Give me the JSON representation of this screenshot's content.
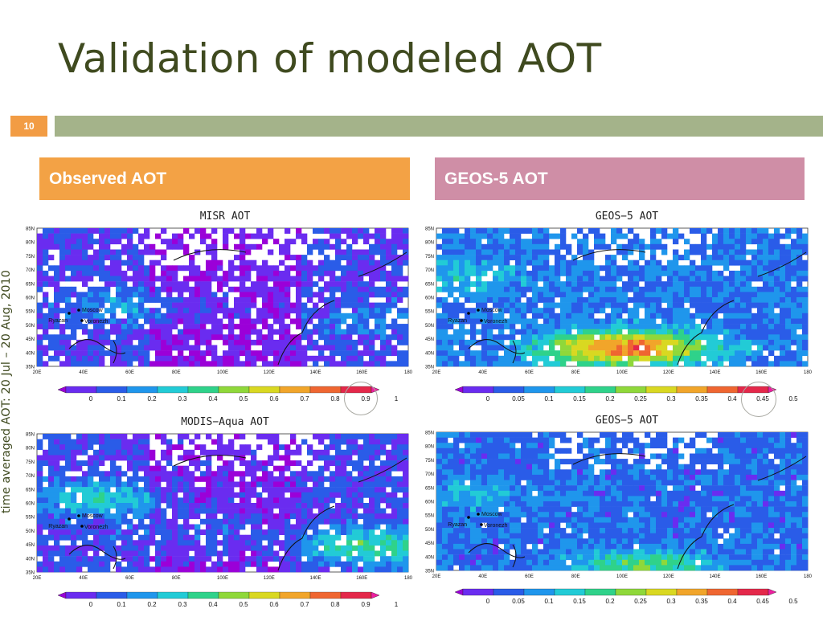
{
  "slide": {
    "title": "Validation of modeled AOT",
    "number": "10",
    "side_label": "time averaged AOT: 20 Jul – 20 Aug, 2010",
    "observed_header": "Observed AOT",
    "geos_header": "GEOS-5 AOT"
  },
  "map_axes": {
    "lat_labels": [
      "85N",
      "80N",
      "75N",
      "70N",
      "65N",
      "60N",
      "55N",
      "50N",
      "45N",
      "40N",
      "35N"
    ],
    "lon_labels": [
      "20E",
      "40E",
      "60E",
      "80E",
      "100E",
      "120E",
      "140E",
      "160E",
      "180"
    ],
    "cities": [
      "Moscow",
      "Ryazan",
      "Voronezh"
    ]
  },
  "panels": [
    {
      "id": "misr",
      "title": "MISR AOT",
      "colorbar": [
        "0",
        "0.1",
        "0.2",
        "0.3",
        "0.4",
        "0.5",
        "0.6",
        "0.7",
        "0.8",
        "0.9",
        "1"
      ]
    },
    {
      "id": "geos-top",
      "title": "GEOS−5 AOT",
      "colorbar": [
        "0",
        "0.05",
        "0.1",
        "0.15",
        "0.2",
        "0.25",
        "0.3",
        "0.35",
        "0.4",
        "0.45",
        "0.5"
      ]
    },
    {
      "id": "modis",
      "title": "MODIS−Aqua AOT",
      "colorbar": [
        "0",
        "0.1",
        "0.2",
        "0.3",
        "0.4",
        "0.5",
        "0.6",
        "0.7",
        "0.8",
        "0.9",
        "1"
      ]
    },
    {
      "id": "geos-bottom",
      "title": "GEOS−5 AOT",
      "colorbar": [
        "0",
        "0.05",
        "0.1",
        "0.15",
        "0.2",
        "0.25",
        "0.3",
        "0.35",
        "0.4",
        "0.45",
        "0.5"
      ]
    }
  ],
  "colors": {
    "title": "#3f4a1f",
    "observed_header": "#f3a245",
    "geos_header": "#cf8ea6",
    "number_box": "#f29c44",
    "rule": "#a4b38a",
    "colorbar_scale": [
      "#9b00d8",
      "#6a2cf0",
      "#2a5ce8",
      "#1f96ec",
      "#22cbd6",
      "#2fd28a",
      "#8fd83a",
      "#d9d821",
      "#f1a52a",
      "#ef6631",
      "#e4284a",
      "#ee1ea0"
    ]
  }
}
